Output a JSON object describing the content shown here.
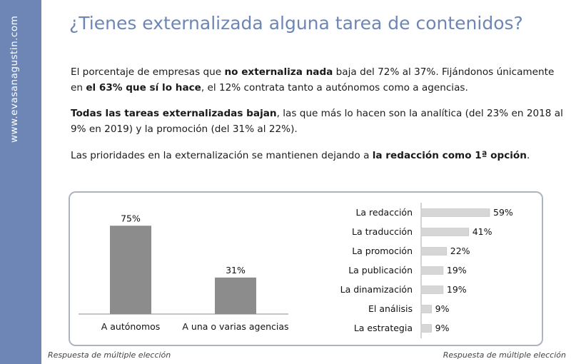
{
  "sidebar": {
    "brand": "www.evasanagustin.com"
  },
  "title": "¿Tienes externalizada alguna tarea de contenidos?",
  "paragraphs": {
    "p1": {
      "t1": "El porcentaje de empresas que ",
      "b1": "no externaliza nada",
      "t2": " baja del 72% al 37%. Fijándonos únicamente en ",
      "b2": "el 63% que sí lo hace",
      "t3": ", el 12% contrata tanto a autónomos como a agencias."
    },
    "p2": {
      "b1": "Todas las tareas externalizadas bajan",
      "t1": ", las que más lo hacen son la analítica (del 23% en 2018 al 9% en 2019) y la promoción (del 31% al 22%)."
    },
    "p3": {
      "t1": "Las prioridades en la externalización se mantienen dejando a ",
      "b1": "la redacción como 1ª opción",
      "t2": "."
    }
  },
  "footnotes": {
    "left": "Respuesta de múltiple elección",
    "right": "Respuesta de múltiple elección"
  },
  "colors": {
    "sidebar": "#6d86b5",
    "title": "#6d86b5",
    "bar_left": "#8c8c8c",
    "bar_right": "#d6d6d6",
    "box_border": "#aeb4bf"
  },
  "chart_data": [
    {
      "type": "bar",
      "categories": [
        "A autónomos",
        "A una o varias agencias"
      ],
      "values": [
        75,
        31
      ],
      "value_labels": [
        "75%",
        "31%"
      ],
      "title": "",
      "xlabel": "",
      "ylabel": "",
      "ylim": [
        0,
        100
      ],
      "grid": false
    },
    {
      "type": "bar",
      "orientation": "horizontal",
      "categories": [
        "La redacción",
        "La traducción",
        "La promoción",
        "La publicación",
        "La dinamización",
        "El análisis",
        "La estrategia"
      ],
      "values": [
        59,
        41,
        22,
        19,
        19,
        9,
        9
      ],
      "value_labels": [
        "59%",
        "41%",
        "22%",
        "19%",
        "19%",
        "9%",
        "9%"
      ],
      "title": "",
      "xlabel": "",
      "ylabel": "",
      "xlim": [
        0,
        100
      ],
      "grid": false
    }
  ]
}
